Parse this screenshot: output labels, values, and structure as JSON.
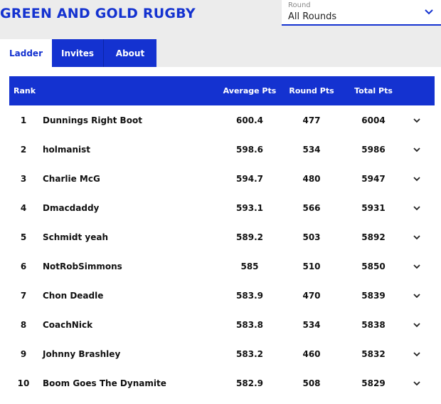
{
  "header": {
    "title": "GREEN AND GOLD RUGBY",
    "round_select": {
      "label": "Round",
      "value": "All Rounds",
      "icon": "chevron-down-icon"
    }
  },
  "tabs": [
    {
      "label": "Ladder",
      "active": true
    },
    {
      "label": "Invites",
      "active": false
    },
    {
      "label": "About",
      "active": false
    }
  ],
  "table": {
    "columns": {
      "rank": "Rank",
      "average": "Average Pts",
      "round": "Round Pts",
      "total": "Total Pts"
    },
    "rows": [
      {
        "rank": "1",
        "name": "Dunnings Right Boot",
        "average": "600.4",
        "round": "477",
        "total": "6004"
      },
      {
        "rank": "2",
        "name": "holmanist",
        "average": "598.6",
        "round": "534",
        "total": "5986"
      },
      {
        "rank": "3",
        "name": "Charlie McG",
        "average": "594.7",
        "round": "480",
        "total": "5947"
      },
      {
        "rank": "4",
        "name": "Dmacdaddy",
        "average": "593.1",
        "round": "566",
        "total": "5931"
      },
      {
        "rank": "5",
        "name": "Schmidt yeah",
        "average": "589.2",
        "round": "503",
        "total": "5892"
      },
      {
        "rank": "6",
        "name": "NotRobSimmons",
        "average": "585",
        "round": "510",
        "total": "5850"
      },
      {
        "rank": "7",
        "name": "Chon Deadle",
        "average": "583.9",
        "round": "470",
        "total": "5839"
      },
      {
        "rank": "8",
        "name": "CoachNick",
        "average": "583.8",
        "round": "534",
        "total": "5838"
      },
      {
        "rank": "9",
        "name": "Johnny Brashley",
        "average": "583.2",
        "round": "460",
        "total": "5832"
      },
      {
        "rank": "10",
        "name": "Boom Goes The Dynamite",
        "average": "582.9",
        "round": "508",
        "total": "5829"
      }
    ]
  },
  "colors": {
    "accent": "#1432d0",
    "background": "#ececec",
    "panel": "#ffffff"
  }
}
